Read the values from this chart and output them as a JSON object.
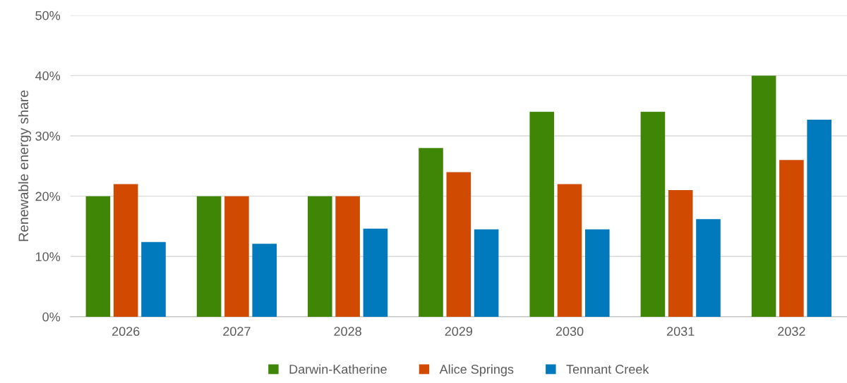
{
  "chart_data": {
    "type": "bar",
    "ylabel": "Renewable energy share",
    "categories": [
      "2026",
      "2027",
      "2028",
      "2029",
      "2030",
      "2031",
      "2032"
    ],
    "series": [
      {
        "name": "Darwin-Katherine",
        "color": "#3f8606",
        "values": [
          20,
          20,
          20,
          28,
          34,
          34,
          40
        ]
      },
      {
        "name": "Alice Springs",
        "color": "#d04a02",
        "values": [
          22,
          20,
          20,
          24,
          22,
          21,
          26
        ]
      },
      {
        "name": "Tennant Creek",
        "color": "#0079bd",
        "values": [
          12.4,
          12.1,
          14.6,
          14.5,
          14.5,
          16.2,
          32.7
        ]
      }
    ],
    "ylim": [
      0,
      50
    ],
    "yticks": [
      {
        "value": 0,
        "label": "0%"
      },
      {
        "value": 10,
        "label": "10%"
      },
      {
        "value": 20,
        "label": "20%"
      },
      {
        "value": 30,
        "label": "30%"
      },
      {
        "value": 40,
        "label": "40%"
      },
      {
        "value": 50,
        "label": "50%"
      }
    ],
    "grid": "y",
    "legend": "bottom"
  }
}
